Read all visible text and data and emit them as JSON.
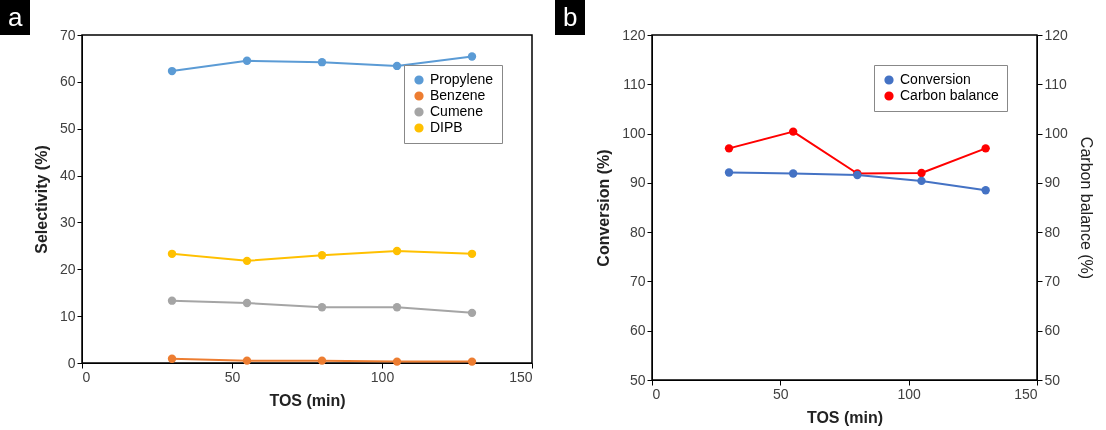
{
  "chart_data": [
    {
      "type": "line",
      "annotations": [
        "a"
      ],
      "xlabel": "TOS (min)",
      "ylabel": "Selectivity (%)",
      "x": [
        30,
        55,
        80,
        105,
        130
      ],
      "xlim": [
        0,
        150
      ],
      "xticks": [
        0,
        50,
        100,
        150
      ],
      "ylim": [
        0,
        70
      ],
      "yticks": [
        0,
        10,
        20,
        30,
        40,
        50,
        60,
        70
      ],
      "grid": false,
      "legend": "top right",
      "marker": "circle",
      "line_style": "solid",
      "series": [
        {
          "name": "Propylene",
          "color": "#5b9bd5",
          "values": [
            62.3,
            64.5,
            64.2,
            63.4,
            65.4
          ]
        },
        {
          "name": "Benzene",
          "color": "#ed7d31",
          "values": [
            0.9,
            0.5,
            0.5,
            0.3,
            0.3
          ]
        },
        {
          "name": "Cumene",
          "color": "#a5a5a5",
          "values": [
            13.3,
            12.8,
            11.9,
            11.9,
            10.7
          ]
        },
        {
          "name": "DIPB",
          "color": "#ffc000",
          "values": [
            23.3,
            21.8,
            23.0,
            23.9,
            23.3
          ]
        }
      ]
    },
    {
      "type": "line",
      "annotations": [
        "b"
      ],
      "xlabel": "TOS (min)",
      "ylabel": "Conversion (%)",
      "y2label": "Carbon balance (%)",
      "x": [
        30,
        55,
        80,
        105,
        130
      ],
      "xlim": [
        0,
        150
      ],
      "xticks": [
        0,
        50,
        100,
        150
      ],
      "ylim": [
        50,
        120
      ],
      "yticks": [
        50,
        60,
        70,
        80,
        90,
        100,
        110,
        120
      ],
      "y2lim": [
        50,
        120
      ],
      "y2ticks": [
        50,
        60,
        70,
        80,
        90,
        100,
        110,
        120
      ],
      "grid": false,
      "legend": "top right",
      "marker": "circle",
      "line_style": "solid",
      "series": [
        {
          "name": "Conversion",
          "color": "#4472c4",
          "values": [
            92.1,
            91.9,
            91.6,
            90.4,
            88.5
          ]
        },
        {
          "name": "Carbon balance",
          "color": "#ff0000",
          "axis": "y2",
          "values": [
            97.0,
            100.4,
            91.9,
            92.0,
            97.0
          ]
        }
      ]
    }
  ]
}
